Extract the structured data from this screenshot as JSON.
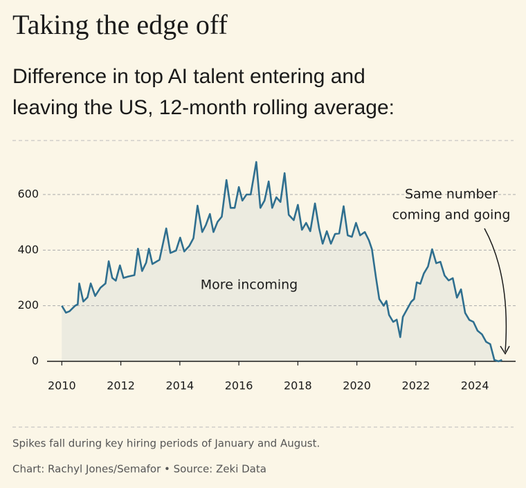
{
  "chart_data": {
    "type": "area",
    "title": "Taking the edge off",
    "subtitle": [
      "Difference in top AI talent entering and",
      "leaving the US, 12-month rolling average:"
    ],
    "annotations": {
      "area_label": "More incoming",
      "arrow_label": [
        "Same number",
        "coming and going"
      ]
    },
    "note": "Spikes fall during key hiring periods of January and August.",
    "source": "Chart: Rachyl Jones/Semafor • Source: Zeki Data",
    "color": "#2f6f8f",
    "fill": "#ecebe0",
    "grid": true,
    "xlim": [
      2009.5,
      2025.38
    ],
    "xticks": [
      2010,
      2012,
      2014,
      2016,
      2018,
      2020,
      2022,
      2024
    ],
    "ylim": [
      0,
      720
    ],
    "yticks": [
      0,
      200,
      400,
      600
    ],
    "x": [
      2010.0,
      2010.14,
      2010.26,
      2010.45,
      2010.54,
      2010.59,
      2010.73,
      2010.87,
      2010.98,
      2011.13,
      2011.31,
      2011.48,
      2011.59,
      2011.71,
      2011.83,
      2011.97,
      2012.09,
      2012.25,
      2012.46,
      2012.58,
      2012.72,
      2012.86,
      2012.95,
      2013.07,
      2013.31,
      2013.54,
      2013.68,
      2013.87,
      2014.01,
      2014.15,
      2014.32,
      2014.46,
      2014.6,
      2014.76,
      2014.88,
      2015.02,
      2015.14,
      2015.28,
      2015.42,
      2015.58,
      2015.72,
      2015.86,
      2016.0,
      2016.12,
      2016.26,
      2016.4,
      2016.59,
      2016.73,
      2016.87,
      2017.01,
      2017.13,
      2017.27,
      2017.41,
      2017.55,
      2017.69,
      2017.86,
      2018.0,
      2018.14,
      2018.28,
      2018.42,
      2018.58,
      2018.72,
      2018.84,
      2018.98,
      2019.12,
      2019.26,
      2019.4,
      2019.55,
      2019.69,
      2019.83,
      2019.97,
      2020.11,
      2020.27,
      2020.41,
      2020.51,
      2020.65,
      2020.76,
      2020.91,
      2021.0,
      2021.09,
      2021.23,
      2021.35,
      2021.47,
      2021.56,
      2021.7,
      2021.84,
      2021.94,
      2022.03,
      2022.15,
      2022.27,
      2022.41,
      2022.55,
      2022.69,
      2022.83,
      2022.97,
      2023.11,
      2023.25,
      2023.39,
      2023.53,
      2023.67,
      2023.81,
      2023.95,
      2024.09,
      2024.24,
      2024.38,
      2024.52,
      2024.66,
      2024.8,
      2024.92
    ],
    "values": [
      200,
      175,
      180,
      200,
      205,
      280,
      215,
      230,
      280,
      235,
      265,
      280,
      360,
      300,
      290,
      345,
      300,
      305,
      310,
      405,
      325,
      355,
      405,
      350,
      365,
      478,
      390,
      398,
      445,
      395,
      415,
      443,
      560,
      465,
      490,
      530,
      465,
      502,
      520,
      652,
      552,
      552,
      627,
      578,
      600,
      600,
      717,
      552,
      578,
      647,
      552,
      590,
      573,
      677,
      527,
      508,
      563,
      473,
      498,
      468,
      568,
      478,
      423,
      468,
      423,
      458,
      460,
      558,
      453,
      448,
      498,
      453,
      465,
      435,
      403,
      300,
      224,
      200,
      217,
      167,
      142,
      150,
      87,
      160,
      187,
      214,
      224,
      284,
      279,
      316,
      341,
      403,
      353,
      358,
      309,
      291,
      299,
      229,
      259,
      174,
      149,
      142,
      110,
      97,
      70,
      62,
      5,
      0,
      5
    ]
  }
}
